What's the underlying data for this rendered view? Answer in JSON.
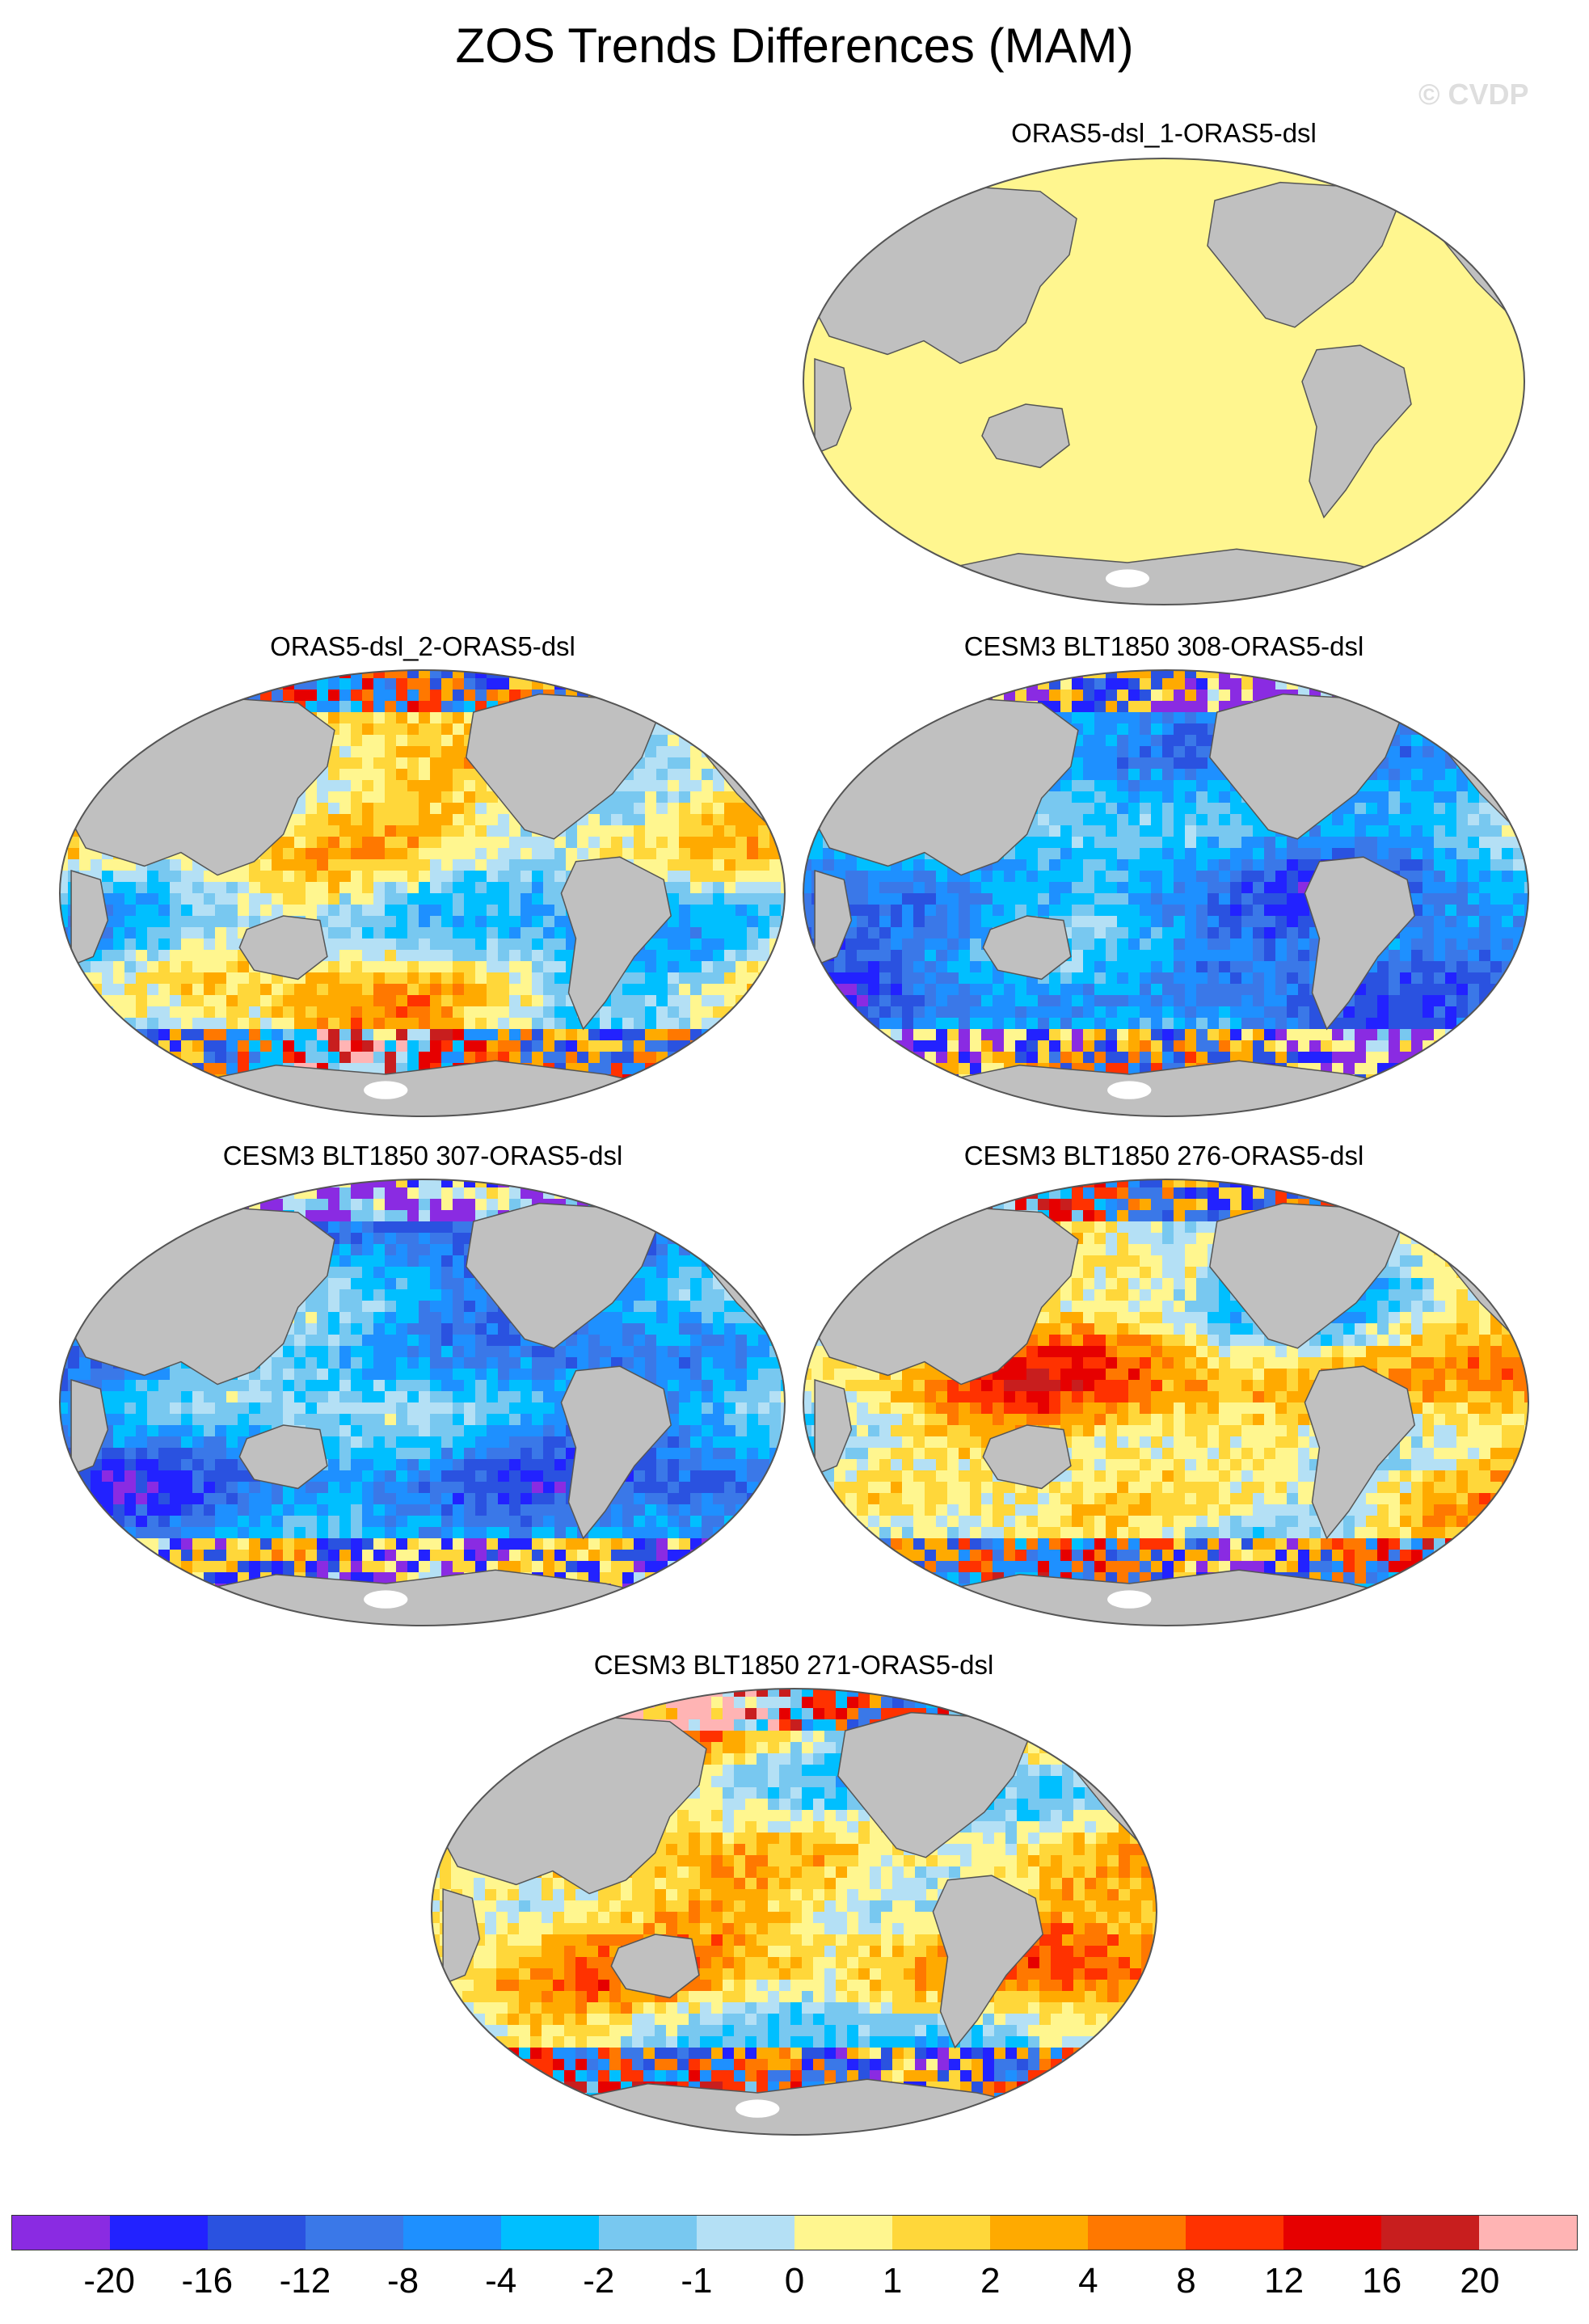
{
  "title": "ZOS Trends Differences (MAM)",
  "watermark": "© CVDP",
  "panels": [
    {
      "title": "ORAS5-dsl_1-ORAS5-dsl",
      "style": "flat"
    },
    {
      "title": "ORAS5-dsl_2-ORAS5-dsl",
      "style": "mixed"
    },
    {
      "title": "CESM3 BLT1850 308-ORAS5-dsl",
      "style": "negative"
    },
    {
      "title": "CESM3 BLT1850 307-ORAS5-dsl",
      "style": "negative"
    },
    {
      "title": "CESM3 BLT1850 276-ORAS5-dsl",
      "style": "positive"
    },
    {
      "title": "CESM3 BLT1850 271-ORAS5-dsl",
      "style": "positive"
    }
  ],
  "colorbar": {
    "colors": [
      "#8a2be2",
      "#2222ff",
      "#2a52e0",
      "#3a78e8",
      "#1e90ff",
      "#00bfff",
      "#78c8f0",
      "#b4e0f5",
      "#fff68f",
      "#ffd73a",
      "#ffaa00",
      "#ff7800",
      "#ff3200",
      "#e60000",
      "#c81e1e",
      "#ffb4b4"
    ],
    "labels": [
      "-20",
      "-16",
      "-12",
      "-8",
      "-4",
      "-2",
      "-1",
      "0",
      "1",
      "2",
      "4",
      "8",
      "12",
      "16",
      "20"
    ]
  },
  "colors": {
    "land": "#c0c0c0",
    "outline": "#555555",
    "ice": "#ffffff"
  }
}
